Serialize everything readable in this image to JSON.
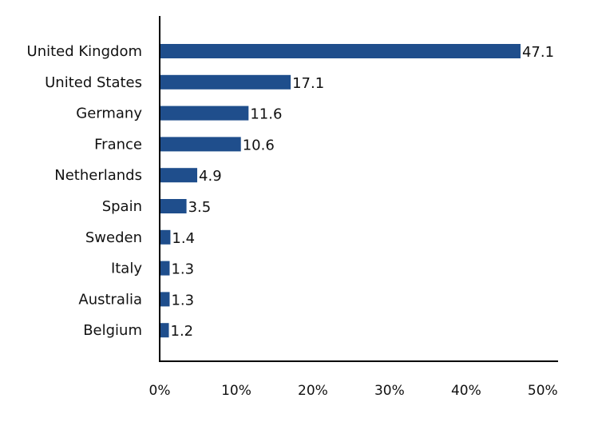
{
  "chart_data": {
    "type": "bar",
    "orientation": "horizontal",
    "categories": [
      "United Kingdom",
      "United States",
      "Germany",
      "France",
      "Netherlands",
      "Spain",
      "Sweden",
      "Italy",
      "Australia",
      "Belgium"
    ],
    "values": [
      47.1,
      17.1,
      11.6,
      10.6,
      4.9,
      3.5,
      1.4,
      1.3,
      1.3,
      1.2
    ],
    "value_labels": [
      "47.1",
      "17.1",
      "11.6",
      "10.6",
      "4.9",
      "3.5",
      "1.4",
      "1.3",
      "1.3",
      "1.2"
    ],
    "x_ticks": [
      "0%",
      "10%",
      "20%",
      "30%",
      "40%",
      "50%"
    ],
    "x_tick_values": [
      0,
      10,
      20,
      30,
      40,
      50
    ],
    "xlim": [
      0,
      52
    ],
    "bar_color": "#1F4E8C",
    "grid": false,
    "legend": "none"
  }
}
